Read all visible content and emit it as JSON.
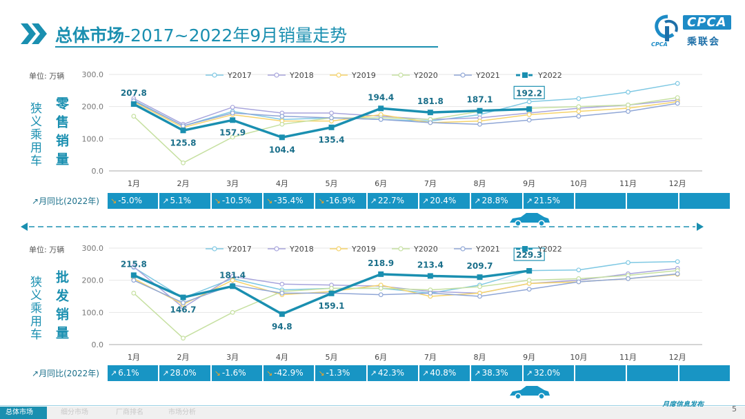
{
  "title_main": "总体市场",
  "title_rest": "-2017~2022年9月销量走势",
  "logo": {
    "text": "CPCA",
    "cn": "乘联会",
    "sub": "CPCA"
  },
  "unit_label": "单位: 万辆",
  "yoy_label": "月同比(2022年)",
  "footer": {
    "tabs": [
      "总体市场",
      "细分市场",
      "厂商排名",
      "市场分析"
    ],
    "right_text": "月度信息发布",
    "page": "5"
  },
  "colors": {
    "Y2017": "#7ec8e3",
    "Y2018": "#a7a4dc",
    "Y2019": "#f5d36a",
    "Y2020": "#c6e0a1",
    "Y2021": "#8fa6d6",
    "Y2022": "#1a8fb0"
  },
  "chart_data": [
    {
      "type": "line",
      "name": "retail",
      "side_label": "狭义乘用车",
      "side_label2": "零售销量",
      "categories": [
        "1月",
        "2月",
        "3月",
        "4月",
        "5月",
        "6月",
        "7月",
        "8月",
        "9月",
        "10月",
        "11月",
        "12月"
      ],
      "ylim": [
        0,
        300
      ],
      "yticks": [
        "0.0",
        "100.0",
        "200.0",
        "300.0"
      ],
      "series": [
        {
          "name": "Y2017",
          "values": [
            220,
            140,
            185,
            160,
            165,
            160,
            155,
            175,
            215,
            225,
            245,
            272
          ]
        },
        {
          "name": "Y2018",
          "values": [
            225,
            145,
            198,
            180,
            180,
            170,
            160,
            165,
            180,
            195,
            205,
            220
          ]
        },
        {
          "name": "Y2019",
          "values": [
            215,
            135,
            175,
            155,
            155,
            175,
            150,
            155,
            175,
            185,
            195,
            215
          ]
        },
        {
          "name": "Y2020",
          "values": [
            170,
            25,
            105,
            145,
            165,
            165,
            160,
            185,
            195,
            200,
            205,
            228
          ]
        },
        {
          "name": "Y2021",
          "values": [
            218,
            140,
            180,
            170,
            165,
            160,
            150,
            145,
            158,
            170,
            185,
            210
          ]
        },
        {
          "name": "Y2022",
          "values": [
            207.8,
            125.8,
            157.9,
            104.4,
            135.4,
            194.4,
            181.8,
            187.1,
            192.2
          ]
        }
      ],
      "labels": [
        "207.8",
        "125.8",
        "157.9",
        "104.4",
        "135.4",
        "194.4",
        "181.8",
        "187.1",
        "192.2"
      ],
      "yoy": [
        {
          "dir": "down",
          "text": "-5.0%"
        },
        {
          "dir": "up",
          "text": "5.1%"
        },
        {
          "dir": "down",
          "text": "-10.5%"
        },
        {
          "dir": "down",
          "text": "-35.4%"
        },
        {
          "dir": "down",
          "text": "-16.9%"
        },
        {
          "dir": "up",
          "text": "22.7%"
        },
        {
          "dir": "up",
          "text": "20.4%"
        },
        {
          "dir": "up",
          "text": "28.8%"
        },
        {
          "dir": "up",
          "text": "21.5%"
        },
        {
          "dir": "none",
          "text": ""
        },
        {
          "dir": "none",
          "text": ""
        },
        {
          "dir": "none",
          "text": ""
        }
      ]
    },
    {
      "type": "line",
      "name": "wholesale",
      "side_label": "狭义乘用车",
      "side_label2": "批发销量",
      "categories": [
        "1月",
        "2月",
        "3月",
        "4月",
        "5月",
        "6月",
        "7月",
        "8月",
        "9月",
        "10月",
        "11月",
        "12月"
      ],
      "ylim": [
        0,
        300
      ],
      "yticks": [
        "0.0",
        "100.0",
        "200.0",
        "300.0"
      ],
      "series": [
        {
          "name": "Y2017",
          "values": [
            240,
            145,
            205,
            170,
            175,
            175,
            160,
            185,
            230,
            232,
            255,
            258
          ]
        },
        {
          "name": "Y2018",
          "values": [
            242,
            115,
            212,
            188,
            185,
            182,
            165,
            160,
            190,
            200,
            220,
            237
          ]
        },
        {
          "name": "Y2019",
          "values": [
            205,
            125,
            200,
            155,
            165,
            185,
            150,
            160,
            190,
            195,
            205,
            218
          ]
        },
        {
          "name": "Y2020",
          "values": [
            160,
            20,
            100,
            165,
            175,
            175,
            170,
            180,
            200,
            205,
            215,
            230
          ]
        },
        {
          "name": "Y2021",
          "values": [
            200,
            130,
            185,
            160,
            160,
            155,
            160,
            150,
            172,
            195,
            205,
            220
          ]
        },
        {
          "name": "Y2022",
          "values": [
            215.8,
            146.7,
            181.4,
            94.8,
            159.1,
            218.9,
            213.4,
            209.7,
            229.3
          ]
        }
      ],
      "labels": [
        "215.8",
        "146.7",
        "181.4",
        "94.8",
        "159.1",
        "218.9",
        "213.4",
        "209.7",
        "229.3"
      ],
      "yoy": [
        {
          "dir": "up",
          "text": "6.1%"
        },
        {
          "dir": "up",
          "text": "28.0%"
        },
        {
          "dir": "down",
          "text": "-1.6%"
        },
        {
          "dir": "down",
          "text": "-42.9%"
        },
        {
          "dir": "down",
          "text": "-1.3%"
        },
        {
          "dir": "up",
          "text": "42.3%"
        },
        {
          "dir": "up",
          "text": "40.8%"
        },
        {
          "dir": "up",
          "text": "38.3%"
        },
        {
          "dir": "up",
          "text": "32.0%"
        },
        {
          "dir": "none",
          "text": ""
        },
        {
          "dir": "none",
          "text": ""
        },
        {
          "dir": "none",
          "text": ""
        }
      ]
    }
  ]
}
